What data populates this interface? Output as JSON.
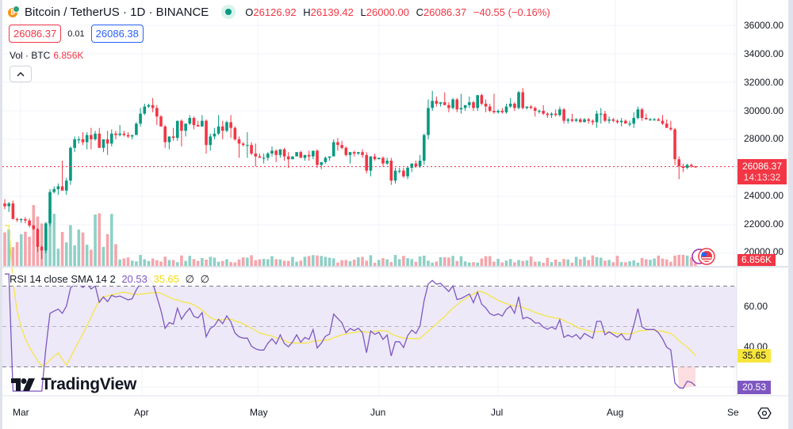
{
  "header": {
    "symbol_title": "Bitcoin / TetherUS · 1D · BINANCE",
    "market_status": "open",
    "ohlc": {
      "open_key": "O",
      "open": "26126.92",
      "high_key": "H",
      "high": "26139.42",
      "low_key": "L",
      "low": "26000.00",
      "close_key": "C",
      "close": "26086.37",
      "change": "−40.55 (−0.16%)"
    },
    "bid": "26086.37",
    "spread": "0.01",
    "ask": "26086.38"
  },
  "volume_legend": {
    "label": "Vol · BTC",
    "value": "6.856K"
  },
  "collapse_button": {
    "icon": "chevron-up-icon"
  },
  "rsi_legend": {
    "label": "RSI 14 close SMA 14 2",
    "rsi_value": "20.53",
    "sma_value": "35.65",
    "extra1": "∅",
    "extra2": "∅"
  },
  "price_axis": {
    "labels": [
      "36000.00",
      "34000.00",
      "32000.00",
      "30000.00",
      "28000.00",
      "24000.00",
      "22000.00",
      "20000.00"
    ]
  },
  "rsi_axis": {
    "labels": [
      "60.00",
      "40.00"
    ]
  },
  "tags": {
    "last_price": "26086.37",
    "countdown": "14:13:32",
    "volume": "6.856K",
    "sma": "35.65",
    "rsi": "20.53"
  },
  "time_axis": {
    "labels": [
      "Mar",
      "Apr",
      "May",
      "Jun",
      "Jul",
      "Aug",
      "Se"
    ]
  },
  "branding": {
    "logo_text": "TradingView"
  },
  "colors": {
    "up": "#089981",
    "down": "#f23645",
    "up_volume": "#8fd0c6",
    "down_volume": "#f5a5ab",
    "rsi_line": "#7e57c2",
    "sma_line": "#f7e53b",
    "rsi_band": "#ede9f8",
    "grid": "#f0f3fa"
  },
  "chart_data": {
    "type": "candlestick",
    "title": "Bitcoin / TetherUS · 1D · BINANCE",
    "x_range": [
      "2023-02-28",
      "2023-08-24"
    ],
    "price_ylim": [
      19500,
      37000
    ],
    "x_ticks": [
      "Mar",
      "Apr",
      "May",
      "Jun",
      "Jul",
      "Aug",
      "Se"
    ],
    "y_ticks": [
      20000,
      22000,
      24000,
      26000,
      28000,
      30000,
      32000,
      34000,
      36000
    ],
    "last_close": 26086.37,
    "ohlc_daily": [
      [
        23500,
        23800,
        23100,
        23300
      ],
      [
        23300,
        23600,
        22900,
        23500
      ],
      [
        23500,
        23700,
        22500,
        22400
      ],
      [
        22400,
        22500,
        22200,
        22350
      ],
      [
        22350,
        22450,
        22150,
        22400
      ],
      [
        22400,
        22550,
        22100,
        22300
      ],
      [
        22300,
        22450,
        21800,
        21950
      ],
      [
        21950,
        22000,
        21650,
        21700
      ],
      [
        21700,
        21750,
        20100,
        20450
      ],
      [
        20450,
        20550,
        19600,
        20200
      ],
      [
        20200,
        22200,
        20000,
        22100
      ],
      [
        22100,
        24500,
        21900,
        24300
      ],
      [
        24300,
        24700,
        24200,
        24500
      ],
      [
        24500,
        24900,
        24100,
        24700
      ],
      [
        24700,
        26500,
        24400,
        24400
      ],
      [
        24400,
        25300,
        24100,
        25100
      ],
      [
        25100,
        27500,
        24800,
        27400
      ],
      [
        27400,
        28200,
        27100,
        28000
      ],
      [
        28000,
        28200,
        27700,
        28000
      ],
      [
        28000,
        28500,
        27600,
        27800
      ],
      [
        27800,
        28500,
        27300,
        28300
      ],
      [
        28300,
        28800,
        27300,
        28000
      ],
      [
        28000,
        28600,
        27900,
        28400
      ],
      [
        28400,
        28800,
        27700,
        27400
      ],
      [
        27400,
        28000,
        27100,
        28000
      ],
      [
        28000,
        28600,
        26900,
        27700
      ],
      [
        27700,
        28700,
        27500,
        28400
      ],
      [
        28400,
        28600,
        28000,
        28300
      ],
      [
        28300,
        29000,
        28200,
        28400
      ],
      [
        28400,
        28600,
        28200,
        28300
      ],
      [
        28300,
        28500,
        28100,
        28200
      ],
      [
        28200,
        28300,
        28000,
        28300
      ],
      [
        28300,
        29200,
        28300,
        29100
      ],
      [
        29100,
        30200,
        28900,
        29800
      ],
      [
        29800,
        30500,
        29700,
        30300
      ],
      [
        30300,
        30500,
        30200,
        30400
      ],
      [
        30400,
        30900,
        29900,
        30200
      ],
      [
        30200,
        30400,
        29000,
        29600
      ],
      [
        29600,
        29700,
        28900,
        28900
      ],
      [
        28900,
        29000,
        27400,
        27800
      ],
      [
        27800,
        28000,
        27300,
        28200
      ],
      [
        28200,
        28800,
        27900,
        28100
      ],
      [
        28100,
        29200,
        27900,
        29300
      ],
      [
        29300,
        29400,
        27500,
        28600
      ],
      [
        28600,
        28800,
        28200,
        29100
      ],
      [
        29100,
        29700,
        29000,
        29500
      ],
      [
        29500,
        29600,
        28700,
        29000
      ],
      [
        29000,
        29300,
        28900,
        28900
      ],
      [
        28900,
        29700,
        28900,
        29300
      ],
      [
        29300,
        29400,
        27000,
        27600
      ],
      [
        27600,
        28400,
        27200,
        28200
      ],
      [
        28200,
        28800,
        28000,
        28400
      ],
      [
        28400,
        29700,
        28300,
        28900
      ],
      [
        28900,
        29300,
        28000,
        28600
      ],
      [
        28600,
        29300,
        28500,
        29200
      ],
      [
        29200,
        29700,
        28100,
        28800
      ],
      [
        28800,
        28900,
        27900,
        28000
      ],
      [
        28000,
        28200,
        26700,
        27700
      ],
      [
        27700,
        27800,
        27500,
        27600
      ],
      [
        27600,
        28500,
        26700,
        27600
      ],
      [
        27600,
        27800,
        26900,
        27000
      ],
      [
        27000,
        27700,
        26100,
        26800
      ],
      [
        26800,
        27000,
        26700,
        26700
      ],
      [
        26700,
        27000,
        26300,
        26700
      ],
      [
        26700,
        27100,
        26500,
        27000
      ],
      [
        27000,
        27500,
        26800,
        27200
      ],
      [
        27200,
        27300,
        26400,
        26900
      ],
      [
        26900,
        27300,
        26700,
        27300
      ],
      [
        27300,
        27400,
        26500,
        26800
      ],
      [
        26800,
        27100,
        26000,
        26600
      ],
      [
        26600,
        26800,
        26600,
        26800
      ],
      [
        26800,
        27100,
        26800,
        27100
      ],
      [
        27100,
        27200,
        26700,
        26700
      ],
      [
        26700,
        26900,
        26500,
        26900
      ],
      [
        26900,
        27200,
        26500,
        26800
      ],
      [
        26800,
        27100,
        26600,
        27200
      ],
      [
        27200,
        27300,
        26000,
        26200
      ],
      [
        26200,
        26400,
        25900,
        26400
      ],
      [
        26400,
        26800,
        26300,
        26700
      ],
      [
        26700,
        26800,
        26500,
        26800
      ],
      [
        26800,
        28000,
        26800,
        27800
      ],
      [
        27800,
        28100,
        27200,
        27600
      ],
      [
        27600,
        27900,
        27300,
        27400
      ],
      [
        27400,
        27500,
        26800,
        26900
      ],
      [
        26900,
        27100,
        26300,
        27100
      ],
      [
        27100,
        27200,
        26800,
        27000
      ],
      [
        27000,
        27100,
        26900,
        27100
      ],
      [
        27100,
        27300,
        26700,
        26900
      ],
      [
        26900,
        27100,
        25600,
        25800
      ],
      [
        25800,
        26800,
        25400,
        26800
      ],
      [
        26800,
        27000,
        26500,
        26600
      ],
      [
        26600,
        26700,
        26600,
        26700
      ],
      [
        26700,
        26800,
        26100,
        26300
      ],
      [
        26300,
        26700,
        26200,
        26500
      ],
      [
        26500,
        26700,
        24800,
        25100
      ],
      [
        25100,
        26000,
        24900,
        25800
      ],
      [
        25800,
        26000,
        25600,
        25800
      ],
      [
        25800,
        26000,
        25300,
        25400
      ],
      [
        25400,
        26100,
        25200,
        26000
      ],
      [
        26000,
        26300,
        25700,
        26300
      ],
      [
        26300,
        26500,
        26000,
        26100
      ],
      [
        26100,
        26900,
        26000,
        26500
      ],
      [
        26500,
        28400,
        26200,
        28300
      ],
      [
        28300,
        30800,
        28000,
        30200
      ],
      [
        30200,
        31400,
        30000,
        30700
      ],
      [
        30700,
        31000,
        30300,
        30500
      ],
      [
        30500,
        30600,
        30300,
        30600
      ],
      [
        30600,
        31300,
        30400,
        30400
      ],
      [
        30400,
        30600,
        29900,
        30200
      ],
      [
        30200,
        30900,
        30100,
        30800
      ],
      [
        30800,
        30900,
        29900,
        30100
      ],
      [
        30100,
        31200,
        29800,
        30200
      ],
      [
        30200,
        30300,
        30000,
        30400
      ],
      [
        30400,
        31000,
        30200,
        30600
      ],
      [
        30600,
        30700,
        30000,
        30200
      ],
      [
        30200,
        31100,
        30000,
        31100
      ],
      [
        31100,
        31200,
        30400,
        30500
      ],
      [
        30500,
        30800,
        29900,
        30300
      ],
      [
        30300,
        30500,
        29900,
        30000
      ],
      [
        30000,
        31200,
        29800,
        29900
      ],
      [
        29900,
        30100,
        29800,
        30000
      ],
      [
        30000,
        30200,
        29800,
        29900
      ],
      [
        29900,
        30500,
        29800,
        30300
      ],
      [
        30300,
        30900,
        30200,
        30500
      ],
      [
        30500,
        30600,
        30000,
        30200
      ],
      [
        30200,
        31400,
        30100,
        31300
      ],
      [
        31300,
        31600,
        30100,
        30200
      ],
      [
        30200,
        30300,
        30100,
        30300
      ],
      [
        30300,
        30400,
        30100,
        30200
      ],
      [
        30200,
        30300,
        29600,
        30000
      ],
      [
        30000,
        30100,
        29800,
        30000
      ],
      [
        30000,
        30400,
        29700,
        29800
      ],
      [
        29800,
        29900,
        29500,
        29700
      ],
      [
        29700,
        29900,
        29500,
        29800
      ],
      [
        29800,
        30100,
        29600,
        29700
      ],
      [
        29700,
        30300,
        29600,
        30100
      ],
      [
        30100,
        30200,
        29100,
        29300
      ],
      [
        29300,
        29500,
        29100,
        29400
      ],
      [
        29400,
        29800,
        29200,
        29300
      ],
      [
        29300,
        29500,
        29200,
        29400
      ],
      [
        29400,
        29500,
        29200,
        29200
      ],
      [
        29200,
        29500,
        29200,
        29400
      ],
      [
        29400,
        29500,
        29100,
        29300
      ],
      [
        29300,
        29400,
        29000,
        29200
      ],
      [
        29200,
        30000,
        28800,
        29800
      ],
      [
        29800,
        30200,
        29100,
        29800
      ],
      [
        29800,
        30000,
        29200,
        29300
      ],
      [
        29300,
        29600,
        29100,
        29400
      ],
      [
        29400,
        29500,
        29200,
        29300
      ],
      [
        29300,
        29400,
        29100,
        29200
      ],
      [
        29200,
        29500,
        28900,
        29300
      ],
      [
        29300,
        29400,
        29100,
        29100
      ],
      [
        29100,
        29300,
        28900,
        29100
      ],
      [
        29100,
        29900,
        28800,
        29500
      ],
      [
        29500,
        30300,
        29400,
        30100
      ],
      [
        30100,
        30200,
        29300,
        29500
      ],
      [
        29500,
        29800,
        29400,
        29400
      ],
      [
        29400,
        29500,
        29300,
        29400
      ],
      [
        29400,
        29500,
        29300,
        29400
      ],
      [
        29400,
        29500,
        29300,
        29300
      ],
      [
        29300,
        29700,
        29000,
        29100
      ],
      [
        29100,
        29400,
        28900,
        28800
      ],
      [
        28800,
        29300,
        28600,
        28700
      ],
      [
        28700,
        28800,
        26200,
        26600
      ],
      [
        26600,
        26800,
        25200,
        26100
      ],
      [
        26100,
        26300,
        25700,
        26000
      ],
      [
        26000,
        26300,
        25900,
        26200
      ],
      [
        26200,
        26300,
        26000,
        26100
      ],
      [
        26100,
        26140,
        26000,
        26086
      ]
    ],
    "volume_series": "per-candle volume bars (green=up, red=down); last = 6.856K BTC",
    "rsi": {
      "name": "RSI 14 close",
      "current": 20.53,
      "ylim": [
        15,
        80
      ],
      "bands": [
        30,
        50,
        70
      ],
      "y_ticks": [
        40,
        60
      ]
    },
    "rsi_sma": {
      "name": "SMA 14",
      "current": 35.65
    }
  }
}
